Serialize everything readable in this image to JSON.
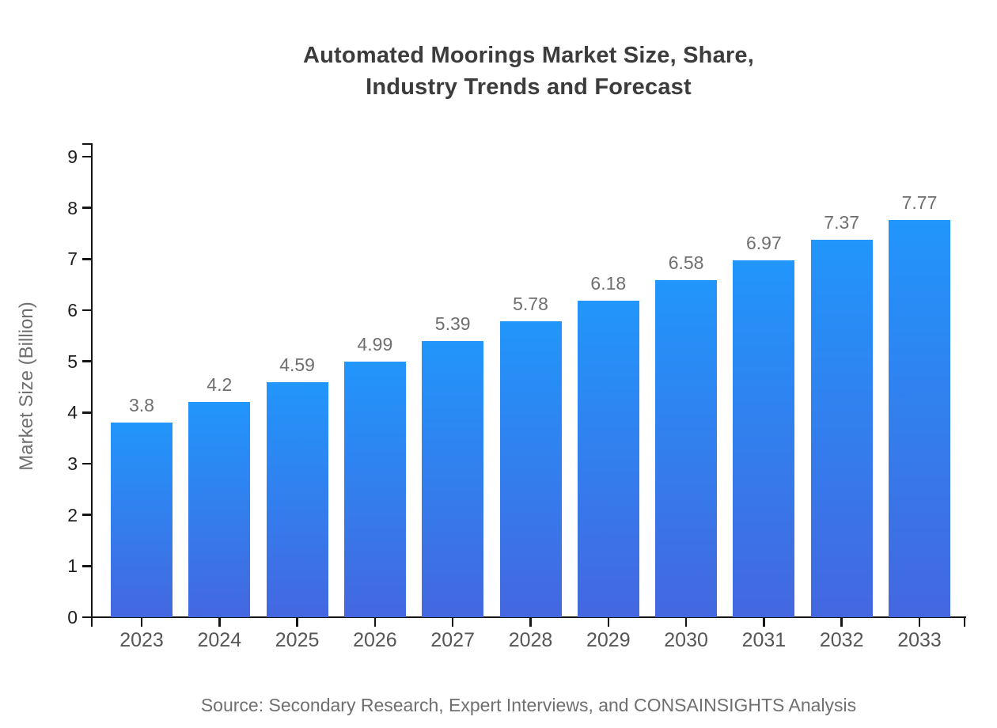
{
  "page": {
    "background": "#ffffff"
  },
  "chart_data": {
    "type": "bar",
    "title": "Automated Moorings Market Size, Share, Industry Trends and Forecast",
    "title_lines": [
      "Automated Moorings Market Size, Share,",
      "Industry Trends and Forecast"
    ],
    "xlabel": "",
    "ylabel": "Market Size (Billion)",
    "categories": [
      "2023",
      "2024",
      "2025",
      "2026",
      "2027",
      "2028",
      "2029",
      "2030",
      "2031",
      "2032",
      "2033"
    ],
    "values": [
      3.8,
      4.2,
      4.59,
      4.99,
      5.39,
      5.78,
      6.18,
      6.58,
      6.97,
      7.37,
      7.77
    ],
    "value_labels": [
      "3.8",
      "4.2",
      "4.59",
      "4.99",
      "5.39",
      "5.78",
      "6.18",
      "6.58",
      "6.97",
      "7.37",
      "7.77"
    ],
    "ylim": [
      0,
      9
    ],
    "yticks": [
      0,
      1,
      2,
      3,
      4,
      5,
      6,
      7,
      8,
      9
    ],
    "grid": false,
    "legend_position": "none",
    "colors": {
      "bar_gradient_top": "#2196fb",
      "bar_gradient_bottom": "#4467e0",
      "axis": "#151515",
      "title": "#3c3c3c",
      "ytick_label": "#1e1e1e",
      "xtick_label": "#565656",
      "value_label": "#6f6f6f",
      "muted_label": "#6f6f6f"
    }
  },
  "footer": {
    "source": "Source: Secondary Research, Expert Interviews, and CONSAINSIGHTS Analysis"
  }
}
